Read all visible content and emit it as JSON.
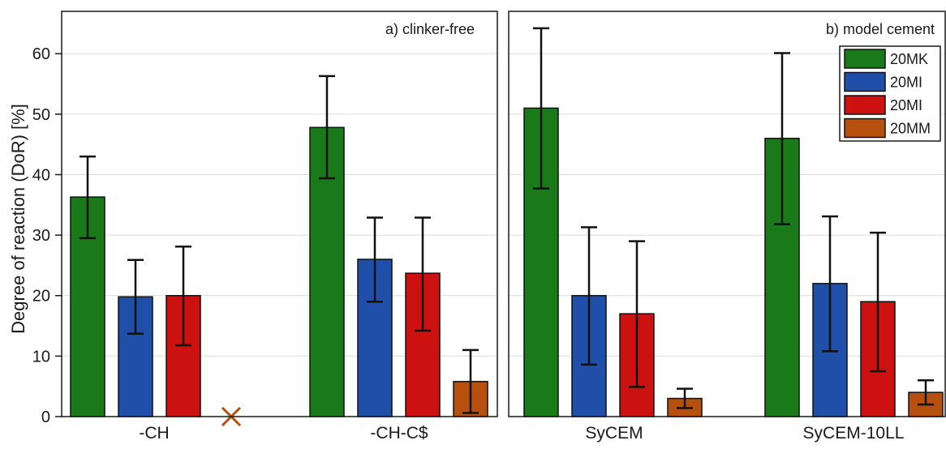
{
  "chart_data": {
    "type": "bar",
    "ylabel": "Degree of reaction (DoR) [%]",
    "ylim": [
      0,
      67
    ],
    "yticks": [
      0,
      10,
      20,
      30,
      40,
      50,
      60
    ],
    "grid": true,
    "legend": {
      "placement": "top-right",
      "entries": [
        {
          "label": "20MK",
          "color": "#1a7a1a"
        },
        {
          "label": "20MI",
          "color": "#1f4fa8"
        },
        {
          "label": "20MI",
          "color": "#cc1111"
        },
        {
          "label": "20MM",
          "color": "#b5500f"
        }
      ]
    },
    "series_colors": [
      "#1a7a1a",
      "#1f4fa8",
      "#cc1111",
      "#b5500f"
    ],
    "panels": [
      {
        "title": "a) clinker-free",
        "categories": [
          "-CH",
          "-CH-C$"
        ],
        "groups": [
          {
            "values": [
              36.3,
              19.8,
              20.0,
              null
            ],
            "errors": [
              [
                29.5,
                43.0
              ],
              [
                13.7,
                25.9
              ],
              [
                11.8,
                28.1
              ],
              null
            ],
            "missing_marker_series": 3
          },
          {
            "values": [
              47.8,
              26.0,
              23.7,
              5.8
            ],
            "errors": [
              [
                39.4,
                56.3
              ],
              [
                19.0,
                32.9
              ],
              [
                14.2,
                32.9
              ],
              [
                0.6,
                11.0
              ]
            ]
          }
        ]
      },
      {
        "title": "b) model cement",
        "categories": [
          "SyCEM",
          "SyCEM-10LL"
        ],
        "groups": [
          {
            "values": [
              51.0,
              20.0,
              17.0,
              3.0
            ],
            "errors": [
              [
                37.7,
                64.2
              ],
              [
                8.6,
                31.3
              ],
              [
                4.9,
                29.0
              ],
              [
                1.4,
                4.6
              ]
            ]
          },
          {
            "values": [
              46.0,
              22.0,
              19.0,
              4.0
            ],
            "errors": [
              [
                31.8,
                60.1
              ],
              [
                10.8,
                33.1
              ],
              [
                7.5,
                30.4
              ],
              [
                2.0,
                6.0
              ]
            ]
          }
        ]
      }
    ]
  }
}
